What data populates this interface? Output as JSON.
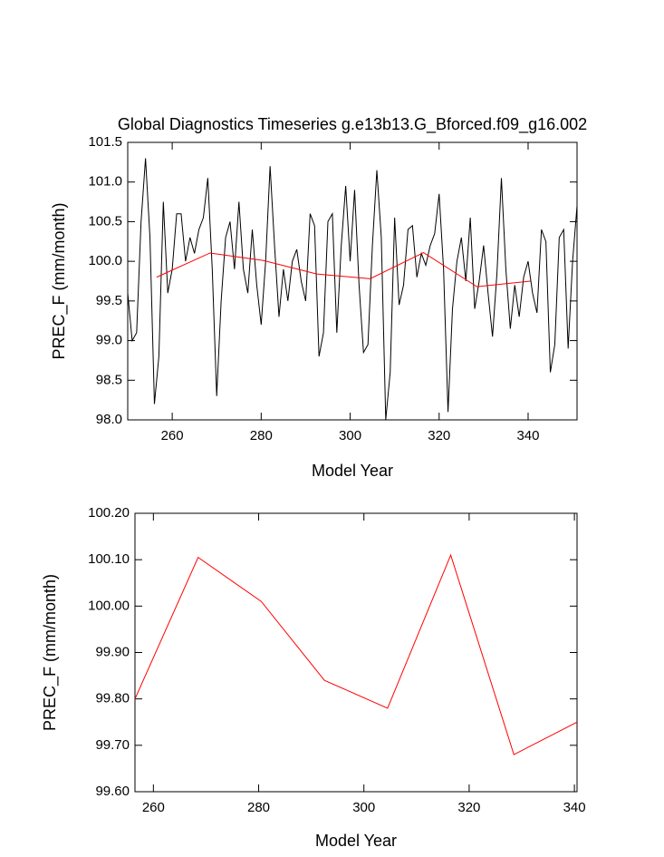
{
  "chart_data": [
    {
      "type": "line",
      "title": "Global Diagnostics Timeseries g.e13b13.G_Bforced.f09_g16.002",
      "x_label": "Model Year",
      "y_label": "PREC_F (mm/month)",
      "xlim": [
        250,
        351
      ],
      "ylim": [
        98.0,
        101.5
      ],
      "xticks": [
        260,
        280,
        300,
        320,
        340
      ],
      "yticks": [
        {
          "value": 98.0,
          "label": "98.0"
        },
        98.5,
        {
          "value": 99.0,
          "label": "99.0"
        },
        99.5,
        {
          "value": 100.0,
          "label": "100.0"
        },
        100.5,
        {
          "value": 101.0,
          "label": "101.0"
        },
        101.5
      ],
      "series": [
        {
          "color": "#000000",
          "x": [
            250,
            251,
            252,
            253,
            254,
            255,
            256,
            257,
            258,
            259,
            260,
            261,
            262,
            263,
            264,
            265,
            266,
            267,
            268,
            269,
            270,
            271,
            272,
            273,
            274,
            275,
            276,
            277,
            278,
            279,
            280,
            281,
            282,
            283,
            284,
            285,
            286,
            287,
            288,
            289,
            290,
            291,
            292,
            293,
            294,
            295,
            296,
            297,
            298,
            299,
            300,
            301,
            302,
            303,
            304,
            305,
            306,
            307,
            308,
            309,
            310,
            311,
            312,
            313,
            314,
            315,
            316,
            317,
            318,
            319,
            320,
            321,
            322,
            323,
            324,
            325,
            326,
            327,
            328,
            329,
            330,
            331,
            332,
            333,
            334,
            335,
            336,
            337,
            338,
            339,
            340,
            341,
            342,
            343,
            344,
            345,
            346,
            347,
            348,
            349,
            350,
            351
          ],
          "values": [
            99.6,
            99.0,
            99.1,
            100.5,
            101.3,
            100.3,
            98.2,
            98.8,
            100.75,
            99.6,
            99.9,
            100.6,
            100.6,
            100.0,
            100.3,
            100.1,
            100.4,
            100.55,
            101.05,
            99.9,
            98.3,
            99.5,
            100.3,
            100.5,
            99.9,
            100.75,
            99.9,
            99.6,
            100.4,
            99.7,
            99.2,
            100.0,
            101.2,
            100.2,
            99.3,
            99.9,
            99.5,
            100.0,
            100.15,
            99.75,
            99.5,
            100.6,
            100.45,
            98.8,
            99.1,
            100.5,
            100.6,
            99.1,
            100.2,
            100.95,
            100.0,
            100.9,
            99.7,
            98.85,
            98.95,
            100.2,
            101.15,
            100.3,
            98.0,
            98.6,
            100.55,
            99.45,
            99.7,
            100.4,
            100.45,
            99.8,
            100.1,
            99.95,
            100.2,
            100.35,
            100.85,
            99.9,
            98.1,
            99.4,
            100.0,
            100.3,
            99.75,
            100.55,
            99.4,
            99.75,
            100.2,
            99.6,
            99.05,
            99.85,
            101.05,
            99.9,
            99.15,
            99.7,
            99.3,
            99.8,
            100.0,
            99.6,
            99.35,
            100.4,
            100.25,
            98.6,
            98.95,
            100.3,
            100.4,
            98.9,
            100.0,
            100.7
          ]
        },
        {
          "color": "#ff0000",
          "x": [
            256.5,
            268.5,
            280.5,
            292.5,
            304.5,
            316.5,
            328.5,
            340.5
          ],
          "values": [
            99.8,
            100.105,
            100.01,
            99.84,
            99.78,
            100.11,
            99.68,
            99.75
          ]
        }
      ]
    },
    {
      "type": "line",
      "x_label": "Model Year",
      "y_label": "PREC_F (mm/month)",
      "xlim": [
        256.5,
        340.5
      ],
      "ylim": [
        99.6,
        100.2
      ],
      "xticks": [
        260,
        280,
        300,
        320,
        340
      ],
      "yticks": [
        {
          "value": 99.6,
          "label": "99.60"
        },
        {
          "value": 99.7,
          "label": "99.70"
        },
        {
          "value": 99.8,
          "label": "99.80"
        },
        {
          "value": 99.9,
          "label": "99.90"
        },
        {
          "value": 100.0,
          "label": "100.00"
        },
        {
          "value": 100.1,
          "label": "100.10"
        },
        {
          "value": 100.2,
          "label": "100.20"
        }
      ],
      "series": [
        {
          "color": "#ff0000",
          "x": [
            256.5,
            268.5,
            280.5,
            292.5,
            304.5,
            316.5,
            328.5,
            340.5
          ],
          "values": [
            99.8,
            100.105,
            100.01,
            99.84,
            99.78,
            100.11,
            99.68,
            99.75
          ]
        }
      ]
    }
  ]
}
